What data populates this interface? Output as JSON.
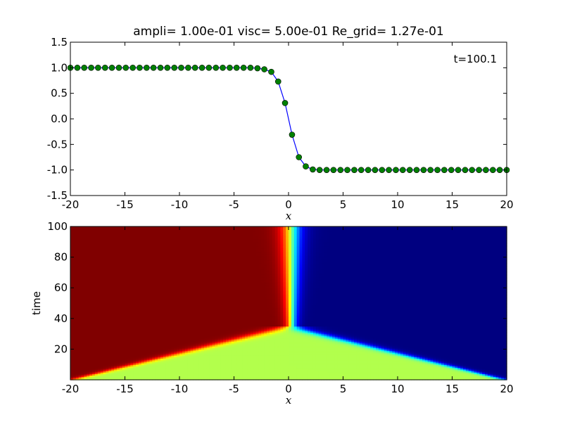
{
  "chart_data": [
    {
      "type": "line",
      "title": "ampli= 1.00e-01  visc= 5.00e-01  Re_grid= 1.27e-01",
      "xlabel": "x",
      "ylabel": "",
      "xlim": [
        -20,
        20
      ],
      "ylim": [
        -1.5,
        1.5
      ],
      "xticks": [
        "-20",
        "-15",
        "-10",
        "-5",
        "0",
        "5",
        "10",
        "15",
        "20"
      ],
      "yticks": [
        "-1.5",
        "-1.0",
        "-0.5",
        "0.0",
        "0.5",
        "1.0",
        "1.5"
      ],
      "annotation": "t=100.1",
      "grid": false,
      "line_color": "#0000ff",
      "marker_color": "#008000",
      "series": [
        {
          "x": [
            -20,
            -19.36,
            -18.73,
            -18.09,
            -17.46,
            -16.82,
            -16.19,
            -15.55,
            -14.92,
            -14.28,
            -13.65,
            -13.01,
            -12.38,
            -11.74,
            -11.11,
            -10.47,
            -9.84,
            -9.2,
            -8.57,
            -7.93,
            -7.3,
            -6.66,
            -6.03,
            -5.39,
            -4.76,
            -4.12,
            -3.49,
            -2.85,
            -2.22,
            -1.58,
            -0.95,
            -0.32,
            0.32,
            0.95,
            1.58,
            2.22,
            2.85,
            3.49,
            4.12,
            4.76,
            5.39,
            6.03,
            6.66,
            7.3,
            7.93,
            8.57,
            9.2,
            9.84,
            10.47,
            11.11,
            11.74,
            12.38,
            13.01,
            13.65,
            14.28,
            14.92,
            15.55,
            16.19,
            16.82,
            17.46,
            18.09,
            18.73,
            19.36,
            20
          ],
          "y": [
            1.0,
            1.0,
            1.0,
            1.0,
            1.0,
            1.0,
            1.0,
            1.0,
            1.0,
            1.0,
            1.0,
            1.0,
            1.0,
            1.0,
            1.0,
            1.0,
            1.0,
            1.0,
            1.0,
            1.0,
            1.0,
            1.0,
            1.0,
            1.0,
            1.0,
            1.0,
            1.0,
            0.99,
            0.97,
            0.92,
            0.73,
            0.31,
            -0.31,
            -0.75,
            -0.93,
            -0.99,
            -1.0,
            -1.0,
            -1.0,
            -1.0,
            -1.0,
            -1.0,
            -1.0,
            -1.0,
            -1.0,
            -1.0,
            -1.0,
            -1.0,
            -1.0,
            -1.0,
            -1.0,
            -1.0,
            -1.0,
            -1.0,
            -1.0,
            -1.0,
            -1.0,
            -1.0,
            -1.0,
            -1.0,
            -1.0,
            -1.0,
            -1.0,
            -1.0
          ]
        }
      ]
    },
    {
      "type": "heatmap",
      "title": "",
      "xlabel": "x",
      "ylabel": "time",
      "xlim": [
        -20,
        20
      ],
      "ylim": [
        0,
        100
      ],
      "xticks": [
        "-20",
        "-15",
        "-10",
        "-5",
        "0",
        "5",
        "10",
        "15",
        "20"
      ],
      "yticks": [
        "20",
        "40",
        "60",
        "80",
        "100"
      ],
      "colormap": "jet",
      "value_range": [
        -1.0,
        1.0
      ],
      "initial_value": 0.1,
      "description_values": {
        "left_state": 1.0,
        "right_state": -1.0,
        "left_front_x_at_t0": -20,
        "right_front_x_at_t0": 20,
        "meeting_time": 35,
        "meeting_x": 0
      }
    }
  ]
}
